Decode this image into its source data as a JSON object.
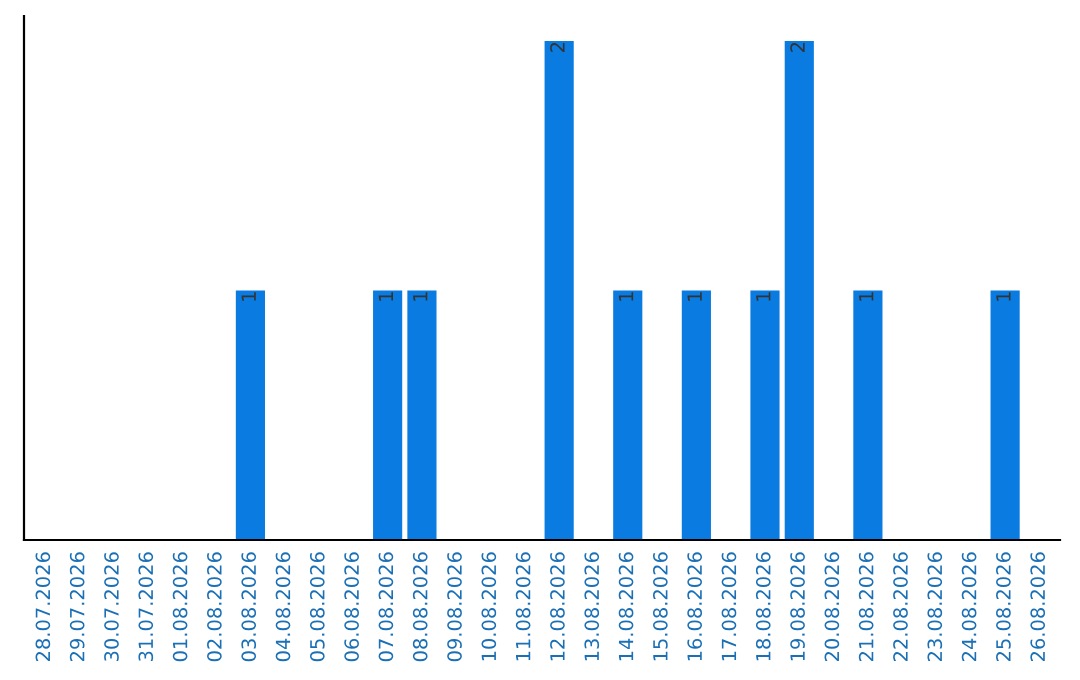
{
  "chart_data": {
    "type": "bar",
    "categories": [
      "28.07.2026",
      "29.07.2026",
      "30.07.2026",
      "31.07.2026",
      "01.08.2026",
      "02.08.2026",
      "03.08.2026",
      "04.08.2026",
      "05.08.2026",
      "06.08.2026",
      "07.08.2026",
      "08.08.2026",
      "09.08.2026",
      "10.08.2026",
      "11.08.2026",
      "12.08.2026",
      "13.08.2026",
      "14.08.2026",
      "15.08.2026",
      "16.08.2026",
      "17.08.2026",
      "18.08.2026",
      "19.08.2026",
      "20.08.2026",
      "21.08.2026",
      "22.08.2026",
      "23.08.2026",
      "24.08.2026",
      "25.08.2026",
      "26.08.2026"
    ],
    "values": [
      0,
      0,
      0,
      0,
      0,
      0,
      1,
      0,
      0,
      0,
      1,
      1,
      0,
      0,
      0,
      2,
      0,
      1,
      0,
      1,
      0,
      1,
      2,
      0,
      1,
      0,
      0,
      0,
      1,
      0
    ],
    "color": "#0a7be0",
    "value_labels": [
      null,
      null,
      null,
      null,
      null,
      null,
      "1",
      null,
      null,
      null,
      "1",
      "1",
      null,
      null,
      null,
      "2",
      null,
      "1",
      null,
      "1",
      null,
      "1",
      "2",
      null,
      "1",
      null,
      null,
      null,
      "1",
      null
    ],
    "tick_labels": "x",
    "grid": false,
    "legend": false
  }
}
